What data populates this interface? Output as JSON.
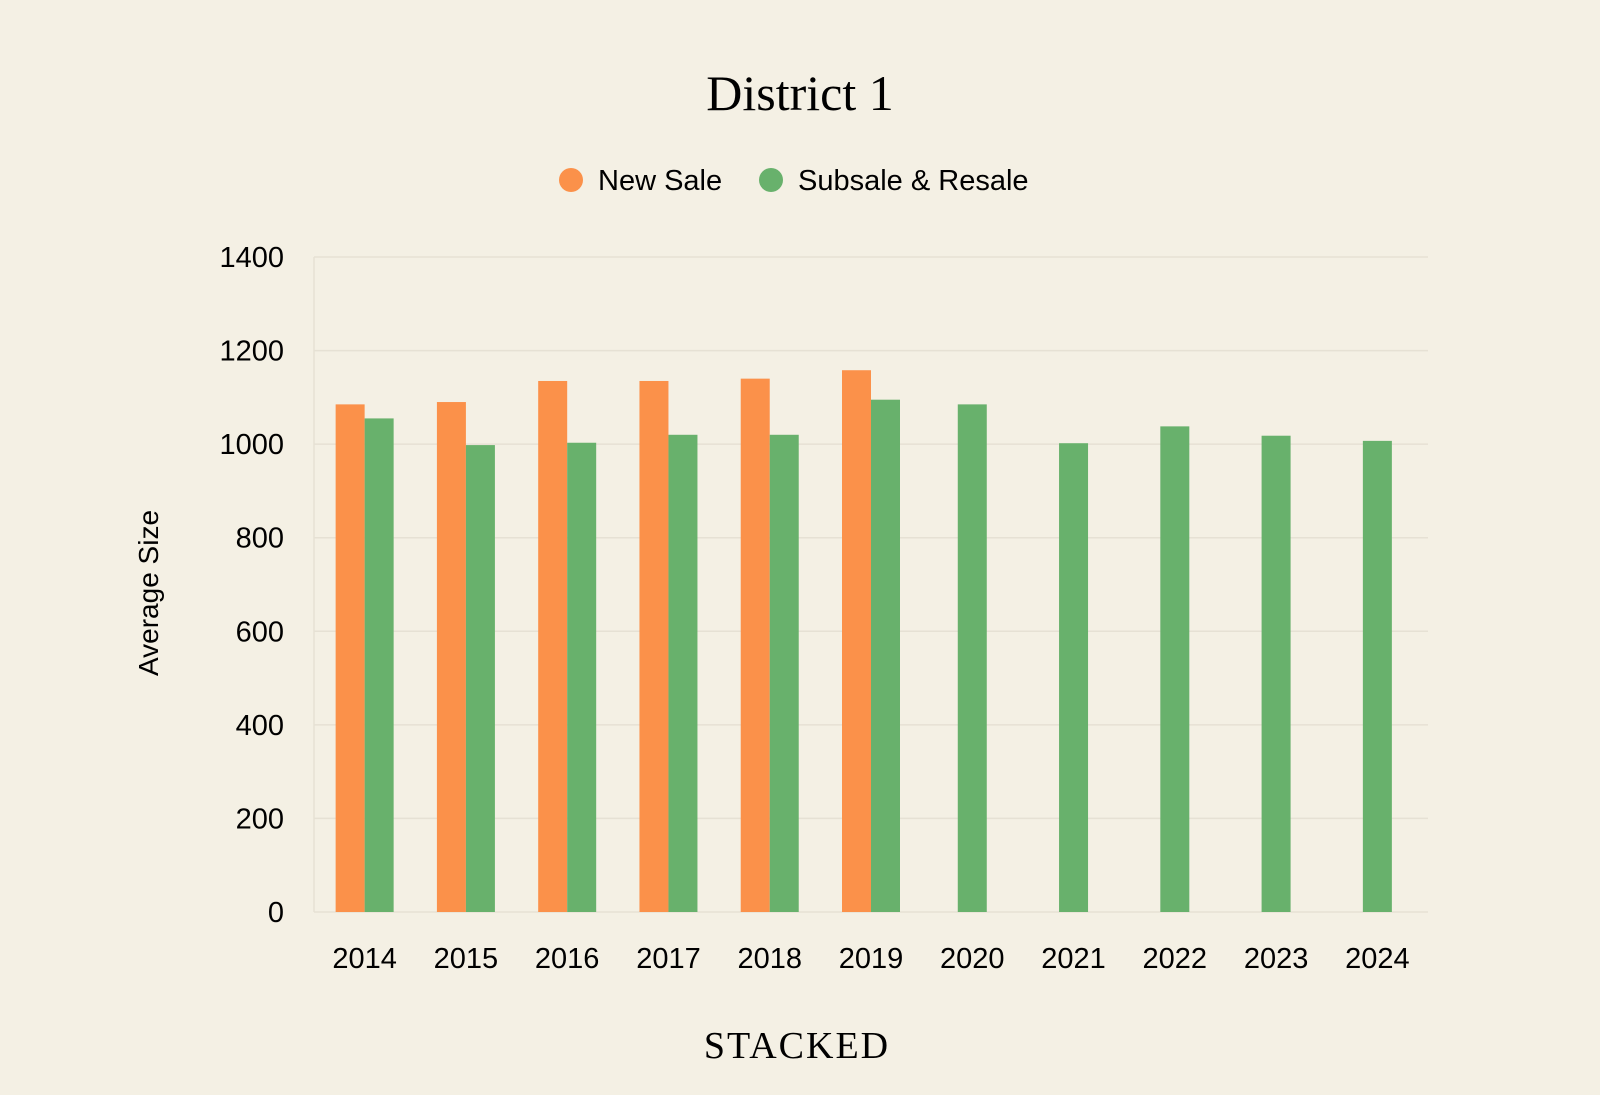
{
  "chart_data": {
    "type": "bar",
    "title": "District 1",
    "xlabel": "",
    "ylabel": "Average Size",
    "categories": [
      "2014",
      "2015",
      "2016",
      "2017",
      "2018",
      "2019",
      "2020",
      "2021",
      "2022",
      "2023",
      "2024"
    ],
    "series": [
      {
        "name": "New Sale",
        "color": "#fb914a",
        "values": [
          1085,
          1090,
          1135,
          1135,
          1140,
          1158,
          null,
          null,
          null,
          null,
          null
        ]
      },
      {
        "name": "Subsale & Resale",
        "color": "#68b16c",
        "values": [
          1055,
          998,
          1003,
          1020,
          1020,
          1095,
          1085,
          1002,
          1038,
          1018,
          1007
        ]
      }
    ],
    "ylim": [
      0,
      1400
    ],
    "yticks": [
      0,
      200,
      400,
      600,
      800,
      1000,
      1200,
      1400
    ],
    "grid": true,
    "legend_position": "top-center",
    "brand": "STACKED"
  }
}
